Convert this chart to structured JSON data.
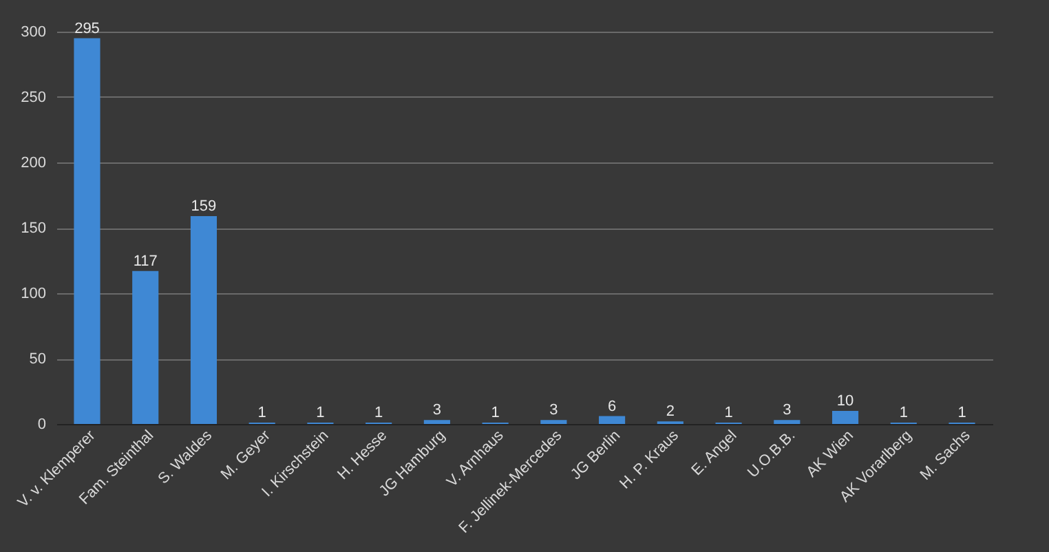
{
  "chart_data": {
    "type": "bar",
    "categories": [
      "V. v. Klemperer",
      "Fam. Steinthal",
      "S. Waldes",
      "M. Geyer",
      "I. Kirschstein",
      "H. Hesse",
      "JG Hamburg",
      "V. Arnhaus",
      "F. Jellinek-Mercedes",
      "JG Berlin",
      "H. P. Kraus",
      "E. Angel",
      "U.O.B.B.",
      "AK Wien",
      "AK Vorarlberg",
      "M. Sachs"
    ],
    "values": [
      295,
      117,
      159,
      1,
      1,
      1,
      3,
      1,
      3,
      6,
      2,
      1,
      3,
      10,
      1,
      1
    ],
    "color": "#3f88d4",
    "ylim": [
      0,
      300
    ],
    "yticks": [
      0,
      50,
      100,
      150,
      200,
      250,
      300
    ],
    "grid": "y",
    "data_labels": true
  }
}
